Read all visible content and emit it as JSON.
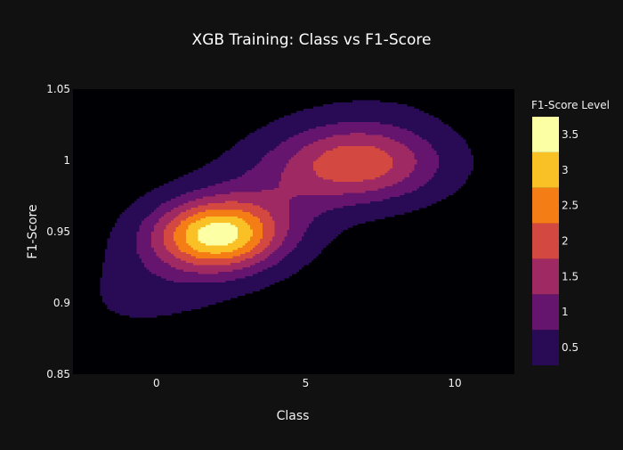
{
  "chart_data": {
    "type": "contour",
    "title": "XGB Training: Class vs F1-Score",
    "xlabel": "Class",
    "ylabel": "F1-Score",
    "xlim": [
      -2.8,
      12.0
    ],
    "ylim": [
      0.85,
      1.05
    ],
    "x_ticks": [
      0,
      5,
      10
    ],
    "x_tick_labels": [
      "0",
      "5",
      "10"
    ],
    "y_ticks": [
      0.85,
      0.9,
      0.95,
      1.0,
      1.05
    ],
    "y_tick_labels": [
      "0.85",
      "0.9",
      "0.95",
      "1",
      "1.05"
    ],
    "colorbar": {
      "title": "F1-Score Level",
      "ticks": [
        0.5,
        1,
        1.5,
        2,
        2.5,
        3,
        3.5
      ],
      "tick_labels": [
        "0.5",
        "1",
        "1.5",
        "2",
        "2.5",
        "3",
        "3.5"
      ],
      "range": [
        0.25,
        3.75
      ]
    },
    "contour_levels": [
      0.25,
      0.75,
      1.25,
      1.75,
      2.25,
      2.75,
      3.25
    ],
    "colors": [
      "#000004",
      "#280b54",
      "#65156e",
      "#9f2a63",
      "#d44842",
      "#f57d15",
      "#fac127",
      "#fcffa4"
    ],
    "density_peaks": [
      {
        "class": 2.0,
        "f1": 0.948,
        "level": 3.6
      },
      {
        "class": 7.0,
        "f1": 0.998,
        "level": 2.6
      }
    ]
  }
}
